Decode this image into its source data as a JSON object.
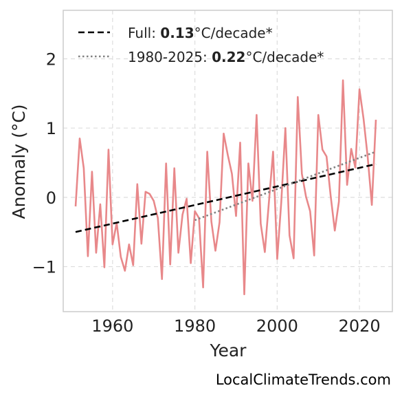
{
  "chart_data": {
    "type": "line",
    "xlabel": "Year",
    "ylabel": "Anomaly (°C)",
    "xlim": [
      1948,
      2028
    ],
    "ylim": [
      -1.65,
      2.7
    ],
    "xticks": [
      1960,
      1980,
      2000,
      2020
    ],
    "xtick_labels": [
      "1960",
      "1980",
      "2000",
      "2020"
    ],
    "yticks": [
      -1,
      0,
      1,
      2
    ],
    "ytick_labels": [
      "−1",
      "0",
      "1",
      "2"
    ],
    "grid": true,
    "legend_position": "top-left",
    "colors": {
      "series": "#e8888a",
      "full_trend": "#000000",
      "recent_trend": "#808080",
      "grid": "#dddddd",
      "frame": "#cccccc"
    },
    "series": [
      {
        "x": [
          1951,
          1952,
          1953,
          1954,
          1955,
          1956,
          1957,
          1958,
          1959,
          1960,
          1961,
          1962,
          1963,
          1964,
          1965,
          1966,
          1967,
          1968,
          1969,
          1970,
          1971,
          1972,
          1973,
          1974,
          1975,
          1976,
          1977,
          1978,
          1979,
          1980,
          1981,
          1982,
          1983,
          1984,
          1985,
          1986,
          1987,
          1988,
          1989,
          1990,
          1991,
          1992,
          1993,
          1994,
          1995,
          1996,
          1997,
          1998,
          1999,
          2000,
          2001,
          2002,
          2003,
          2004,
          2005,
          2006,
          2007,
          2008,
          2009,
          2010,
          2011,
          2012,
          2013,
          2014,
          2015,
          2016,
          2017,
          2018,
          2019,
          2020,
          2021,
          2022,
          2023,
          2024
        ],
        "values": [
          -0.13,
          0.85,
          0.42,
          -0.85,
          0.37,
          -0.8,
          -0.1,
          -1.01,
          0.69,
          -0.68,
          -0.37,
          -0.86,
          -1.06,
          -0.68,
          -0.98,
          0.19,
          -0.67,
          0.08,
          0.05,
          -0.05,
          -0.3,
          -1.18,
          0.49,
          -0.97,
          0.42,
          -0.8,
          -0.25,
          -0.02,
          -0.95,
          -0.2,
          -0.3,
          -1.3,
          0.66,
          -0.35,
          -0.77,
          -0.36,
          0.92,
          0.61,
          0.34,
          -0.27,
          0.79,
          -1.4,
          0.49,
          -0.05,
          1.19,
          -0.38,
          -0.79,
          -0.06,
          0.66,
          -0.89,
          -0.07,
          1.0,
          -0.55,
          -0.88,
          1.45,
          0.34,
          0.01,
          -0.2,
          -0.84,
          1.19,
          0.69,
          0.59,
          0.02,
          -0.48,
          -0.06,
          1.69,
          0.18,
          0.7,
          0.43,
          1.56,
          1.13,
          0.58,
          -0.11,
          1.12
        ]
      }
    ],
    "trend_lines": [
      {
        "x": [
          1951,
          2024
        ],
        "values": [
          -0.5,
          0.48
        ]
      },
      {
        "x": [
          1980,
          2024
        ],
        "values": [
          -0.33,
          0.66
        ]
      }
    ],
    "legend": [
      {
        "prefix": "Full: ",
        "value": "0.13",
        "suffix": "°C/decade*"
      },
      {
        "prefix": "1980-2025: ",
        "value": "0.22",
        "suffix": "°C/decade*"
      }
    ]
  },
  "footer": {
    "credit": "LocalClimateTrends.com"
  }
}
